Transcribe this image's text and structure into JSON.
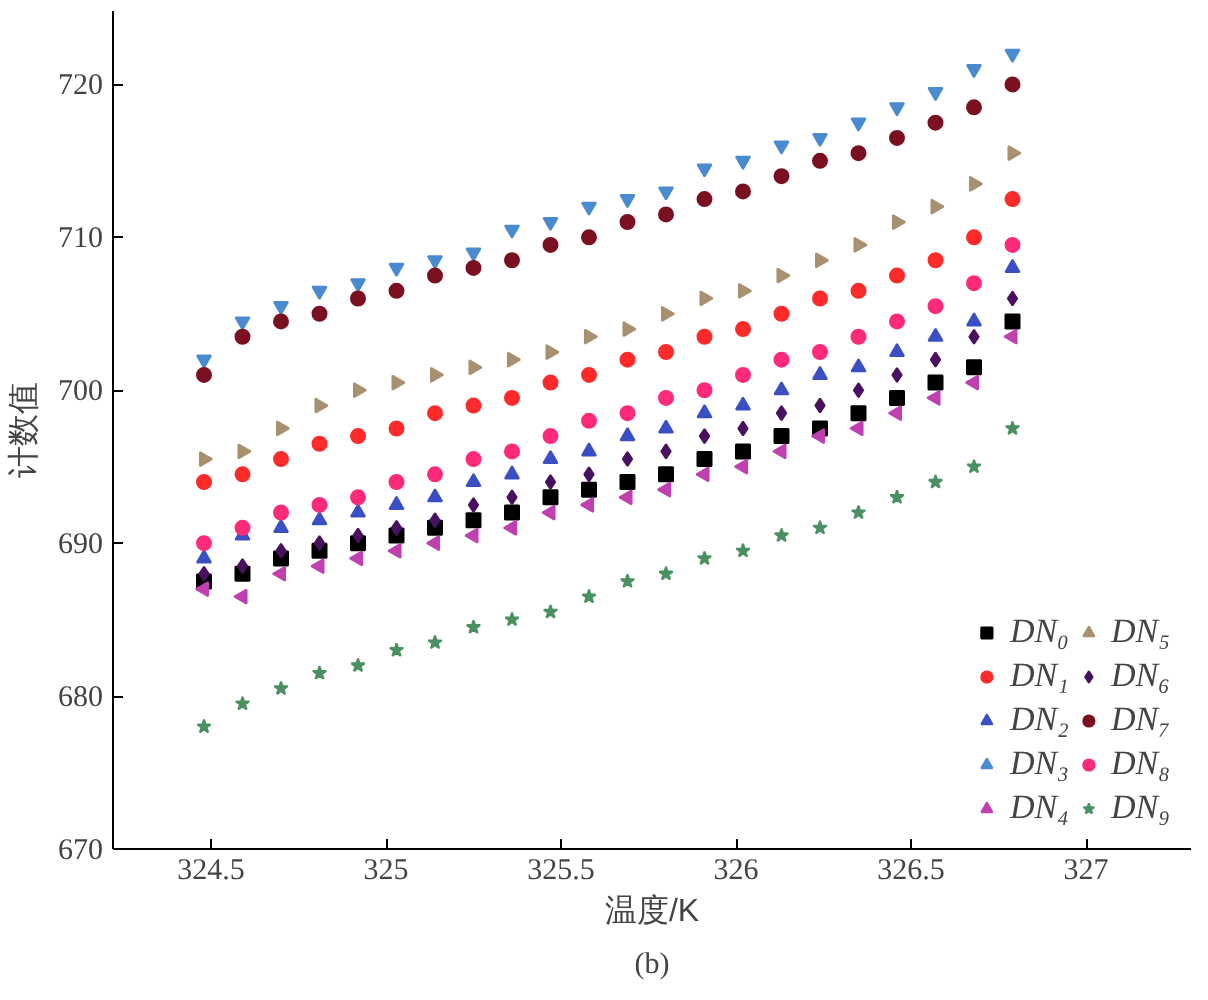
{
  "chart_data": {
    "type": "scatter",
    "xlabel": "温度/K",
    "ylabel": "计数值",
    "annotations": [
      "(b)"
    ],
    "x": [
      324.48,
      324.59,
      324.7,
      324.81,
      324.92,
      325.03,
      325.14,
      325.25,
      325.36,
      325.47,
      325.58,
      325.69,
      325.8,
      325.91,
      326.02,
      326.13,
      326.24,
      326.35,
      326.46,
      326.57,
      326.68,
      326.79
    ],
    "xlim": [
      324.22,
      327.3
    ],
    "ylim": [
      670,
      724.8
    ],
    "xticks": [
      324.5,
      325.0,
      325.5,
      326.0,
      326.5,
      327.0
    ],
    "yticks": [
      670,
      680,
      690,
      700,
      710,
      720
    ],
    "grid": false,
    "legend": "bottom right",
    "series": [
      {
        "name": "DN₀",
        "color": "#000000",
        "marker": "square",
        "values": [
          687.5,
          688,
          689,
          689.5,
          690,
          690.5,
          691,
          691.5,
          692,
          693,
          693.5,
          694,
          694.5,
          695.5,
          696,
          697,
          697.5,
          698.5,
          699.5,
          700.5,
          701.5,
          704.5
        ]
      },
      {
        "name": "DN₁",
        "color": "#ff2a2a",
        "marker": "circle",
        "values": [
          694,
          694.5,
          695.5,
          696.5,
          697,
          697.5,
          698.5,
          699,
          699.5,
          700.5,
          701,
          702,
          702.5,
          703.5,
          704,
          705,
          706,
          706.5,
          707.5,
          708.5,
          710,
          712.5
        ]
      },
      {
        "name": "DN₂",
        "color": "#3b4fc4",
        "marker": "triangle",
        "values": [
          689,
          690.5,
          691,
          691.5,
          692,
          692.5,
          693,
          694,
          694.5,
          695.5,
          696,
          697,
          697.5,
          698.5,
          699,
          700,
          701,
          701.5,
          702.5,
          703.5,
          704.5,
          708
        ]
      },
      {
        "name": "DN₃",
        "color": "#4a8bd0",
        "marker": "triangle",
        "values": [
          702,
          704.5,
          705.5,
          706.5,
          707,
          708,
          708.5,
          709,
          710.5,
          711,
          712,
          712.5,
          713,
          714.5,
          715,
          716,
          716.5,
          717.5,
          718.5,
          719.5,
          721,
          722
        ]
      },
      {
        "name": "DN₄",
        "color": "#c040b0",
        "marker": "triangle",
        "values": [
          687,
          686.5,
          688,
          688.5,
          689,
          689.5,
          690,
          690.5,
          691,
          692,
          692.5,
          693,
          693.5,
          694.5,
          695,
          696,
          697,
          697.5,
          698.5,
          699.5,
          700.5,
          703.5
        ]
      },
      {
        "name": "DN₅",
        "color": "#a89070",
        "marker": "triangle",
        "values": [
          695.5,
          696,
          697.5,
          699,
          700,
          700.5,
          701,
          701.5,
          702,
          702.5,
          703.5,
          704,
          705,
          706,
          706.5,
          707.5,
          708.5,
          709.5,
          711,
          712,
          713.5,
          715.5
        ]
      },
      {
        "name": "DN₆",
        "color": "#4a1060",
        "marker": "diamond",
        "values": [
          688,
          688.5,
          689.5,
          690,
          690.5,
          691,
          691.5,
          692.5,
          693,
          694,
          694.5,
          695.5,
          696,
          697,
          697.5,
          698.5,
          699,
          700,
          701,
          702,
          703.5,
          706
        ]
      },
      {
        "name": "DN₇",
        "color": "#7a1020",
        "marker": "circle",
        "values": [
          701,
          703.5,
          704.5,
          705,
          706,
          706.5,
          707.5,
          708,
          708.5,
          709.5,
          710,
          711,
          711.5,
          712.5,
          713,
          714,
          715,
          715.5,
          716.5,
          717.5,
          718.5,
          720
        ]
      },
      {
        "name": "DN₈",
        "color": "#ff2a7a",
        "marker": "circle",
        "values": [
          690,
          691,
          692,
          692.5,
          693,
          694,
          694.5,
          695.5,
          696,
          697,
          698,
          698.5,
          699.5,
          700,
          701,
          702,
          702.5,
          703.5,
          704.5,
          705.5,
          707,
          709.5
        ]
      },
      {
        "name": "DN₉",
        "color": "#4a9060",
        "marker": "star",
        "values": [
          678,
          679.5,
          680.5,
          681.5,
          682,
          683,
          683.5,
          684.5,
          685,
          685.5,
          686.5,
          687.5,
          688,
          689,
          689.5,
          690.5,
          691,
          692,
          693,
          694,
          695,
          697.5
        ]
      }
    ]
  }
}
